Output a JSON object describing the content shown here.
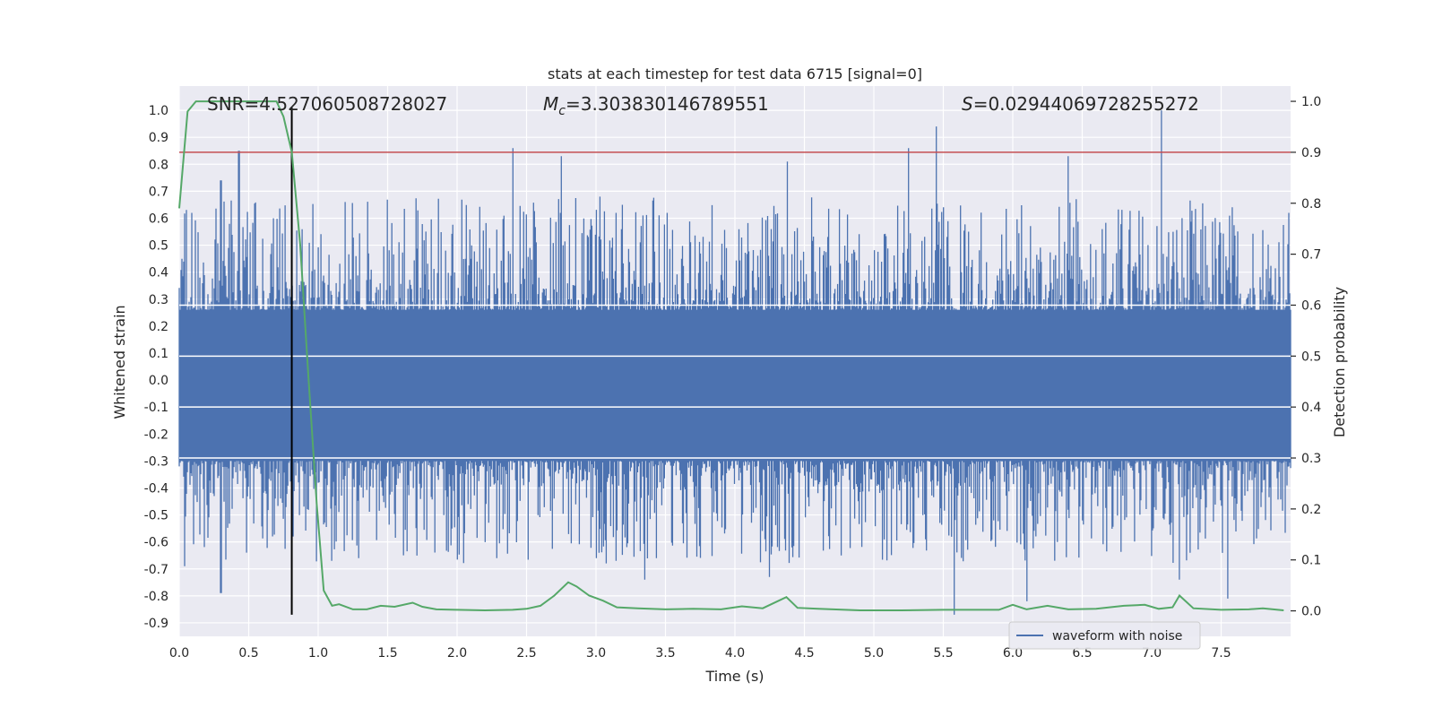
{
  "chart_data": {
    "type": "line",
    "title": "stats at each timestep for test data 6715 [signal=0]",
    "xlabel": "Time (s)",
    "ylabel": "Whitened strain",
    "y2label": "Detection probability",
    "xlim": [
      0.0,
      8.0
    ],
    "ylim": [
      -0.95,
      1.09
    ],
    "y2lim": [
      -0.05,
      1.03
    ],
    "xticks": [
      0.0,
      0.5,
      1.0,
      1.5,
      2.0,
      2.5,
      3.0,
      3.5,
      4.0,
      4.5,
      5.0,
      5.5,
      6.0,
      6.5,
      7.0,
      7.5
    ],
    "xtick_labels": [
      "0.0",
      "0.5",
      "1.0",
      "1.5",
      "2.0",
      "2.5",
      "3.0",
      "3.5",
      "4.0",
      "4.5",
      "5.0",
      "5.5",
      "6.0",
      "6.5",
      "7.0",
      "7.5"
    ],
    "yticks": [
      1.0,
      0.9,
      0.8,
      0.7,
      0.6,
      0.5,
      0.4,
      0.3,
      0.2,
      0.1,
      0.0,
      -0.1,
      -0.2,
      -0.3,
      -0.4,
      -0.5,
      -0.6,
      -0.7,
      -0.8,
      -0.9
    ],
    "ytick_labels": [
      "1.0",
      "0.9",
      "0.8",
      "0.7",
      "0.6",
      "0.5",
      "0.4",
      "0.3",
      "0.2",
      "0.1",
      "0.0",
      "-0.1",
      "-0.2",
      "-0.3",
      "-0.4",
      "-0.5",
      "-0.6",
      "-0.7",
      "-0.8",
      "-0.9"
    ],
    "y2ticks": [
      1.0,
      0.9,
      0.8,
      0.7,
      0.6,
      0.5,
      0.4,
      0.3,
      0.2,
      0.1,
      0.0
    ],
    "y2tick_labels": [
      "1.0",
      "0.9",
      "0.8",
      "0.7",
      "0.6",
      "0.5",
      "0.4",
      "0.3",
      "0.2",
      "0.1",
      "0.0"
    ],
    "grid": true,
    "legend": {
      "position": "lower-right",
      "entries": [
        "waveform with noise"
      ]
    },
    "annotations": {
      "snr": "SNR=4.527060508728027",
      "mc_symbol": "M",
      "mc_sub": "c",
      "mc_value": "=3.303830146789551",
      "s_symbol": "S",
      "s_value": "=0.02944069728255272"
    },
    "threshold_line": {
      "axis": "y2",
      "value": 0.9
    },
    "marker_line": {
      "x": 0.81,
      "y_range": [
        -0.87,
        1.01
      ]
    },
    "waveform": {
      "name": "waveform with noise",
      "x_range": [
        0.0,
        8.0
      ],
      "core_min": -0.3,
      "core_max": 0.26,
      "envelope_min": -0.87,
      "envelope_max": 1.0,
      "peaks": [
        {
          "x": 0.09,
          "y": 0.62
        },
        {
          "x": 0.3,
          "y": 0.74
        },
        {
          "x": 0.43,
          "y": 0.85
        },
        {
          "x": 0.68,
          "y": 0.6
        },
        {
          "x": 2.4,
          "y": 0.86
        },
        {
          "x": 2.75,
          "y": 0.83
        },
        {
          "x": 4.38,
          "y": 0.81
        },
        {
          "x": 5.25,
          "y": 0.86
        },
        {
          "x": 5.45,
          "y": 0.94
        },
        {
          "x": 6.4,
          "y": 0.83
        },
        {
          "x": 7.07,
          "y": 1.0
        }
      ],
      "troughs": [
        {
          "x": 0.04,
          "y": -0.69
        },
        {
          "x": 0.3,
          "y": -0.79
        },
        {
          "x": 0.82,
          "y": -0.58
        },
        {
          "x": 1.1,
          "y": -0.67
        },
        {
          "x": 3.0,
          "y": -0.66
        },
        {
          "x": 3.35,
          "y": -0.74
        },
        {
          "x": 4.25,
          "y": -0.73
        },
        {
          "x": 5.58,
          "y": -0.87
        },
        {
          "x": 6.1,
          "y": -0.82
        },
        {
          "x": 7.2,
          "y": -0.74
        },
        {
          "x": 7.55,
          "y": -0.81
        }
      ]
    },
    "series": [
      {
        "name": "detection probability",
        "axis": "y2",
        "color": "#55a868",
        "x": [
          0.0,
          0.06,
          0.12,
          0.2,
          0.3,
          0.4,
          0.5,
          0.6,
          0.7,
          0.75,
          0.81,
          0.87,
          0.93,
          0.99,
          1.04,
          1.1,
          1.15,
          1.25,
          1.35,
          1.45,
          1.55,
          1.68,
          1.75,
          1.85,
          2.0,
          2.2,
          2.4,
          2.5,
          2.6,
          2.7,
          2.8,
          2.86,
          2.95,
          3.05,
          3.15,
          3.3,
          3.5,
          3.7,
          3.9,
          4.05,
          4.2,
          4.37,
          4.45,
          4.6,
          4.9,
          5.2,
          5.5,
          5.7,
          5.9,
          6.0,
          6.1,
          6.25,
          6.4,
          6.6,
          6.8,
          6.95,
          7.05,
          7.15,
          7.2,
          7.3,
          7.5,
          7.7,
          7.8,
          7.95
        ],
        "y": [
          0.79,
          0.98,
          1.0,
          1.0,
          1.0,
          1.0,
          1.0,
          1.0,
          1.0,
          0.97,
          0.9,
          0.72,
          0.46,
          0.21,
          0.04,
          0.01,
          0.013,
          0.003,
          0.003,
          0.01,
          0.008,
          0.016,
          0.008,
          0.003,
          0.002,
          0.001,
          0.002,
          0.004,
          0.01,
          0.03,
          0.056,
          0.048,
          0.03,
          0.02,
          0.007,
          0.005,
          0.003,
          0.004,
          0.003,
          0.009,
          0.005,
          0.027,
          0.006,
          0.004,
          0.001,
          0.001,
          0.002,
          0.002,
          0.002,
          0.012,
          0.003,
          0.01,
          0.003,
          0.004,
          0.01,
          0.012,
          0.004,
          0.007,
          0.03,
          0.005,
          0.002,
          0.003,
          0.005,
          0.001
        ]
      }
    ]
  }
}
